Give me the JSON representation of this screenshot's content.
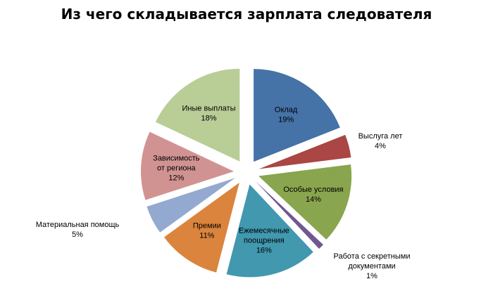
{
  "chart_data": {
    "type": "pie",
    "exploded": true,
    "title": "Из чего складывается зарплата следователя",
    "slices": [
      {
        "label": [
          "Оклад"
        ],
        "value": 19,
        "display": "19%",
        "color": "#4572A7"
      },
      {
        "label": [
          "Выслуга лет"
        ],
        "value": 4,
        "display": "4%",
        "color": "#AA4643"
      },
      {
        "label": [
          "Особые условия"
        ],
        "value": 14,
        "display": "14%",
        "color": "#89A54E"
      },
      {
        "label": [
          "Работа с секретными",
          "документами"
        ],
        "value": 1,
        "display": "1%",
        "color": "#71588F"
      },
      {
        "label": [
          "Ежемесячные",
          "поощрения"
        ],
        "value": 16,
        "display": "16%",
        "color": "#4198AF"
      },
      {
        "label": [
          "Премии"
        ],
        "value": 11,
        "display": "11%",
        "color": "#DB843D"
      },
      {
        "label": [
          "Материальная помощь"
        ],
        "value": 5,
        "display": "5%",
        "color": "#93A9CF"
      },
      {
        "label": [
          "Зависимость",
          "от региона"
        ],
        "value": 12,
        "display": "12%",
        "color": "#D19392"
      },
      {
        "label": [
          "Иные выплаты"
        ],
        "value": 18,
        "display": "18%",
        "color": "#B9CD96"
      }
    ]
  }
}
